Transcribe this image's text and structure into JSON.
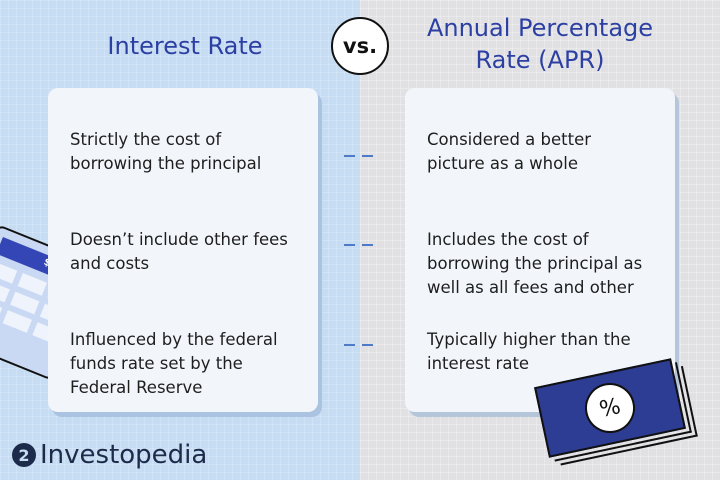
{
  "left": {
    "title": "Interest Rate",
    "items": [
      "Strictly the cost of borrowing the principal",
      "Doesn’t include other fees and costs",
      "Influenced by the federal funds rate set by the Federal Reserve"
    ]
  },
  "vs": "vs.",
  "right": {
    "title": "Annual Percentage Rate (APR)",
    "items": [
      "Considered a better picture as a whole",
      "Includes the cost of borrowing the principal as well as all fees and other",
      "Typically higher than the interest rate"
    ]
  },
  "calculator": {
    "display": "$$$.$$",
    "icon": "calculator-icon"
  },
  "bill": {
    "symbol": "%",
    "icon": "percent-bill-icon"
  },
  "brand": "Investopedia",
  "colors": {
    "title": "#2c3fa3",
    "left_bg": "#c6dcf3",
    "right_bg": "#e1e1e4",
    "bill": "#2e3d94"
  }
}
